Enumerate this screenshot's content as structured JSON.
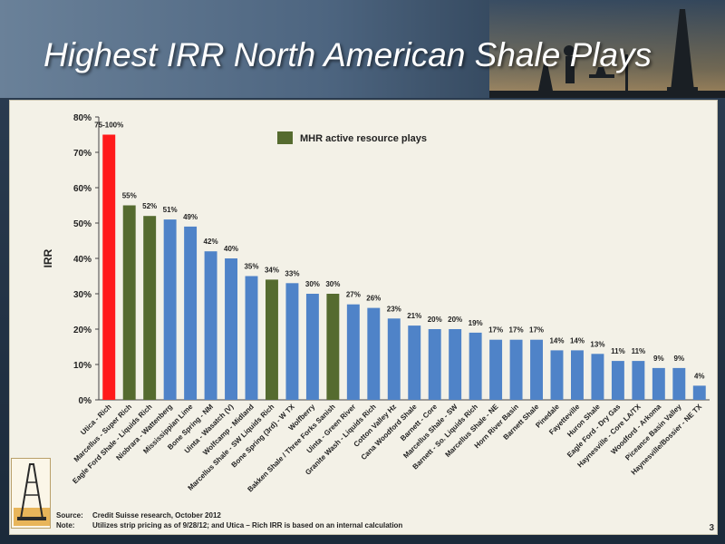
{
  "slide": {
    "title": "Highest IRR North American Shale Plays",
    "page_number": "3"
  },
  "footnotes": {
    "source_label": "Source:",
    "source_text": "Credit Suisse research, October 2012",
    "note_label": "Note:",
    "note_text": "Utilizes strip pricing as of 9/28/12; and Utica – Rich IRR is based on an internal calculation"
  },
  "colors": {
    "highlight_red": "#ff1a1a",
    "mhr_green": "#556b2f",
    "default_blue": "#4f83c8"
  },
  "chart_data": {
    "type": "bar",
    "ylabel": "IRR",
    "xlabel": "",
    "ylim": [
      0,
      80
    ],
    "yticks": [
      "0%",
      "10%",
      "20%",
      "30%",
      "40%",
      "50%",
      "60%",
      "70%",
      "80%"
    ],
    "legend": {
      "label": "MHR active resource plays",
      "placement": "top-center"
    },
    "grid": false,
    "categories": [
      "Utica - Rich",
      "Marcellus - Super Rich",
      "Eagle Ford Shale - Liquids Rich",
      "Niobrara - Wattenberg",
      "Mississippian Lime",
      "Bone Spring - NM",
      "Uinta - Wasatch (V)",
      "Wolfcamp - Midland",
      "Marcellus Shale - SW Liquids Rich",
      "Bone Spring (3rd) - W TX",
      "Wolfberry",
      "Bakken Shale / Three Forks Sanish",
      "Uinta - Green River",
      "Granite Wash - Liquids Rich",
      "Cotton Valley Hz",
      "Cana Woodford Shale",
      "Barnett - Core",
      "Marcellus Shale - SW",
      "Barnett - So. Liquids Rich",
      "Marcellus Shale - NE",
      "Horn River Basin",
      "Barnett Shale",
      "Pinedale",
      "Fayetteville",
      "Huron Shale",
      "Eagle Ford - Dry Gas",
      "Haynesville - Core LA/TX",
      "Woodford - Arkoma",
      "Piceance Basin Valley",
      "Haynesville/Bossier - NE TX"
    ],
    "values": [
      75,
      55,
      52,
      51,
      49,
      42,
      40,
      35,
      34,
      33,
      30,
      30,
      27,
      26,
      23,
      21,
      20,
      20,
      19,
      17,
      17,
      17,
      14,
      14,
      13,
      11,
      11,
      9,
      9,
      4
    ],
    "data_labels": [
      "75-100%",
      "55%",
      "52%",
      "51%",
      "49%",
      "42%",
      "40%",
      "35%",
      "34%",
      "33%",
      "30%",
      "30%",
      "27%",
      "26%",
      "23%",
      "21%",
      "20%",
      "20%",
      "19%",
      "17%",
      "17%",
      "17%",
      "14%",
      "14%",
      "13%",
      "11%",
      "11%",
      "9%",
      "9%",
      "4%"
    ],
    "bar_groups": [
      "red",
      "green",
      "green",
      "blue",
      "blue",
      "blue",
      "blue",
      "blue",
      "green",
      "blue",
      "blue",
      "green",
      "blue",
      "blue",
      "blue",
      "blue",
      "blue",
      "blue",
      "blue",
      "blue",
      "blue",
      "blue",
      "blue",
      "blue",
      "blue",
      "blue",
      "blue",
      "blue",
      "blue",
      "blue"
    ]
  }
}
